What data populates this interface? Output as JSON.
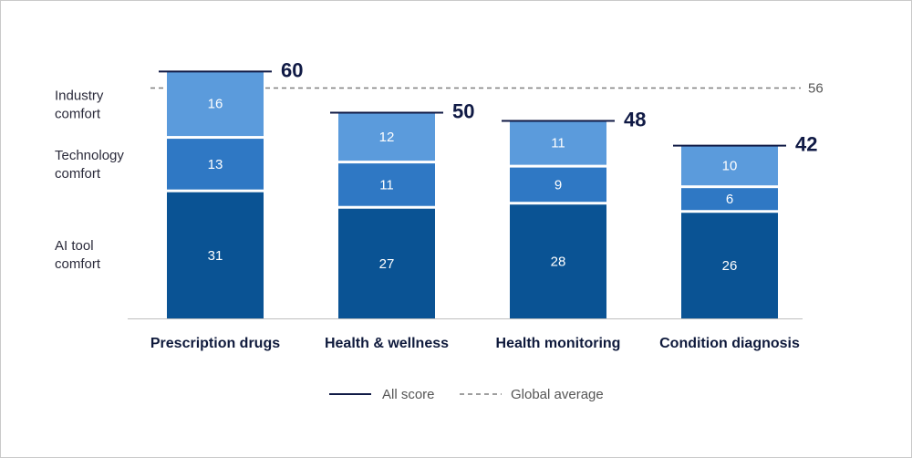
{
  "chart_data": {
    "type": "bar",
    "stacked": true,
    "categories": [
      "Prescription drugs",
      "Health & wellness",
      "Health monitoring",
      "Condition diagnosis"
    ],
    "series": [
      {
        "name": "AI tool comfort",
        "label_lines": [
          "AI tool",
          "comfort"
        ],
        "color": "#0a5394",
        "values": [
          31,
          27,
          28,
          26
        ]
      },
      {
        "name": "Technology comfort",
        "label_lines": [
          "Technology",
          "comfort"
        ],
        "color": "#2f78c4",
        "values": [
          13,
          11,
          9,
          6
        ]
      },
      {
        "name": "Industry comfort",
        "label_lines": [
          "Industry",
          "comfort"
        ],
        "color": "#5b9bdc",
        "values": [
          16,
          12,
          11,
          10
        ]
      }
    ],
    "totals": [
      60,
      50,
      48,
      42
    ],
    "global_average": 56,
    "ylim": [
      0,
      70
    ],
    "legend": {
      "all_score": "All score",
      "global_average": "Global average"
    },
    "colors": {
      "total_line": "#101a45",
      "average_line": "#7f7f7f",
      "baseline": "#bfbfbf"
    }
  }
}
